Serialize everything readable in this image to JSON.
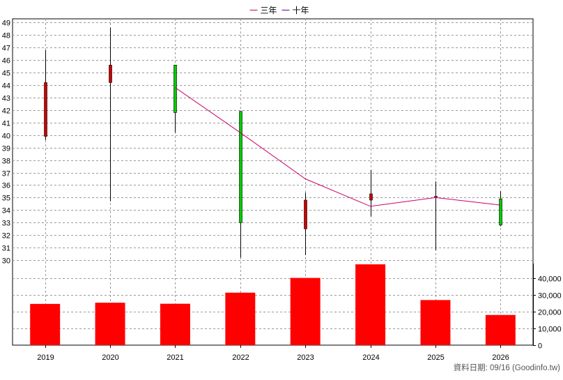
{
  "chart_data": {
    "type": "candlestick",
    "legend": {
      "placement": "top-center",
      "entries": [
        {
          "name": "三年",
          "color": "#cc0066"
        },
        {
          "name": "十年",
          "color": "#660099"
        }
      ]
    },
    "categories": [
      "2019",
      "2020",
      "2021",
      "2022",
      "2023",
      "2024",
      "2025",
      "2026"
    ],
    "price": {
      "ylim": [
        29.5,
        49.3
      ],
      "yticks": [
        30,
        31,
        32,
        33,
        34,
        35,
        36,
        37,
        38,
        39,
        40,
        41,
        42,
        43,
        44,
        45,
        46,
        47,
        48,
        49
      ],
      "candles": [
        {
          "year": "2019",
          "open": 39.9,
          "high": 46.8,
          "low": 39.6,
          "close": 44.2
        },
        {
          "year": "2020",
          "open": 44.2,
          "high": 48.6,
          "low": 34.7,
          "close": 45.6
        },
        {
          "year": "2021",
          "open": 45.6,
          "high": 45.6,
          "low": 40.2,
          "close": 41.8
        },
        {
          "year": "2022",
          "open": 41.9,
          "high": 41.9,
          "low": 30.2,
          "close": 33.0
        },
        {
          "year": "2023",
          "open": 32.5,
          "high": 35.4,
          "low": 30.4,
          "close": 34.8
        },
        {
          "year": "2024",
          "open": 34.8,
          "high": 37.2,
          "low": 33.5,
          "close": 35.3
        },
        {
          "year": "2025",
          "open": 35.0,
          "high": 36.3,
          "low": 30.8,
          "close": 35.1
        },
        {
          "year": "2026",
          "open": 34.9,
          "high": 35.5,
          "low": 32.7,
          "close": 32.8
        }
      ],
      "line_series": [
        {
          "name": "三年",
          "color": "#cc0066",
          "values": [
            null,
            null,
            43.8,
            40.2,
            36.5,
            34.3,
            35.0,
            34.4
          ]
        }
      ]
    },
    "volume": {
      "ylim": [
        0,
        47000
      ],
      "yticks": [
        0,
        10000,
        20000,
        30000,
        40000
      ],
      "ytick_labels": [
        "0",
        "10,000",
        "20,000",
        "30,000",
        "40,000"
      ],
      "values": [
        24600,
        25300,
        24700,
        31300,
        40100,
        48200,
        26900,
        18000
      ],
      "color": "#ff0000"
    },
    "colors": {
      "up": "#cc0000",
      "down": "#00cc00",
      "wick": "#000000",
      "grid": "#999999"
    },
    "grid": true
  },
  "footer": {
    "source": "資料日期: 09/16  (Goodinfo.tw)"
  }
}
